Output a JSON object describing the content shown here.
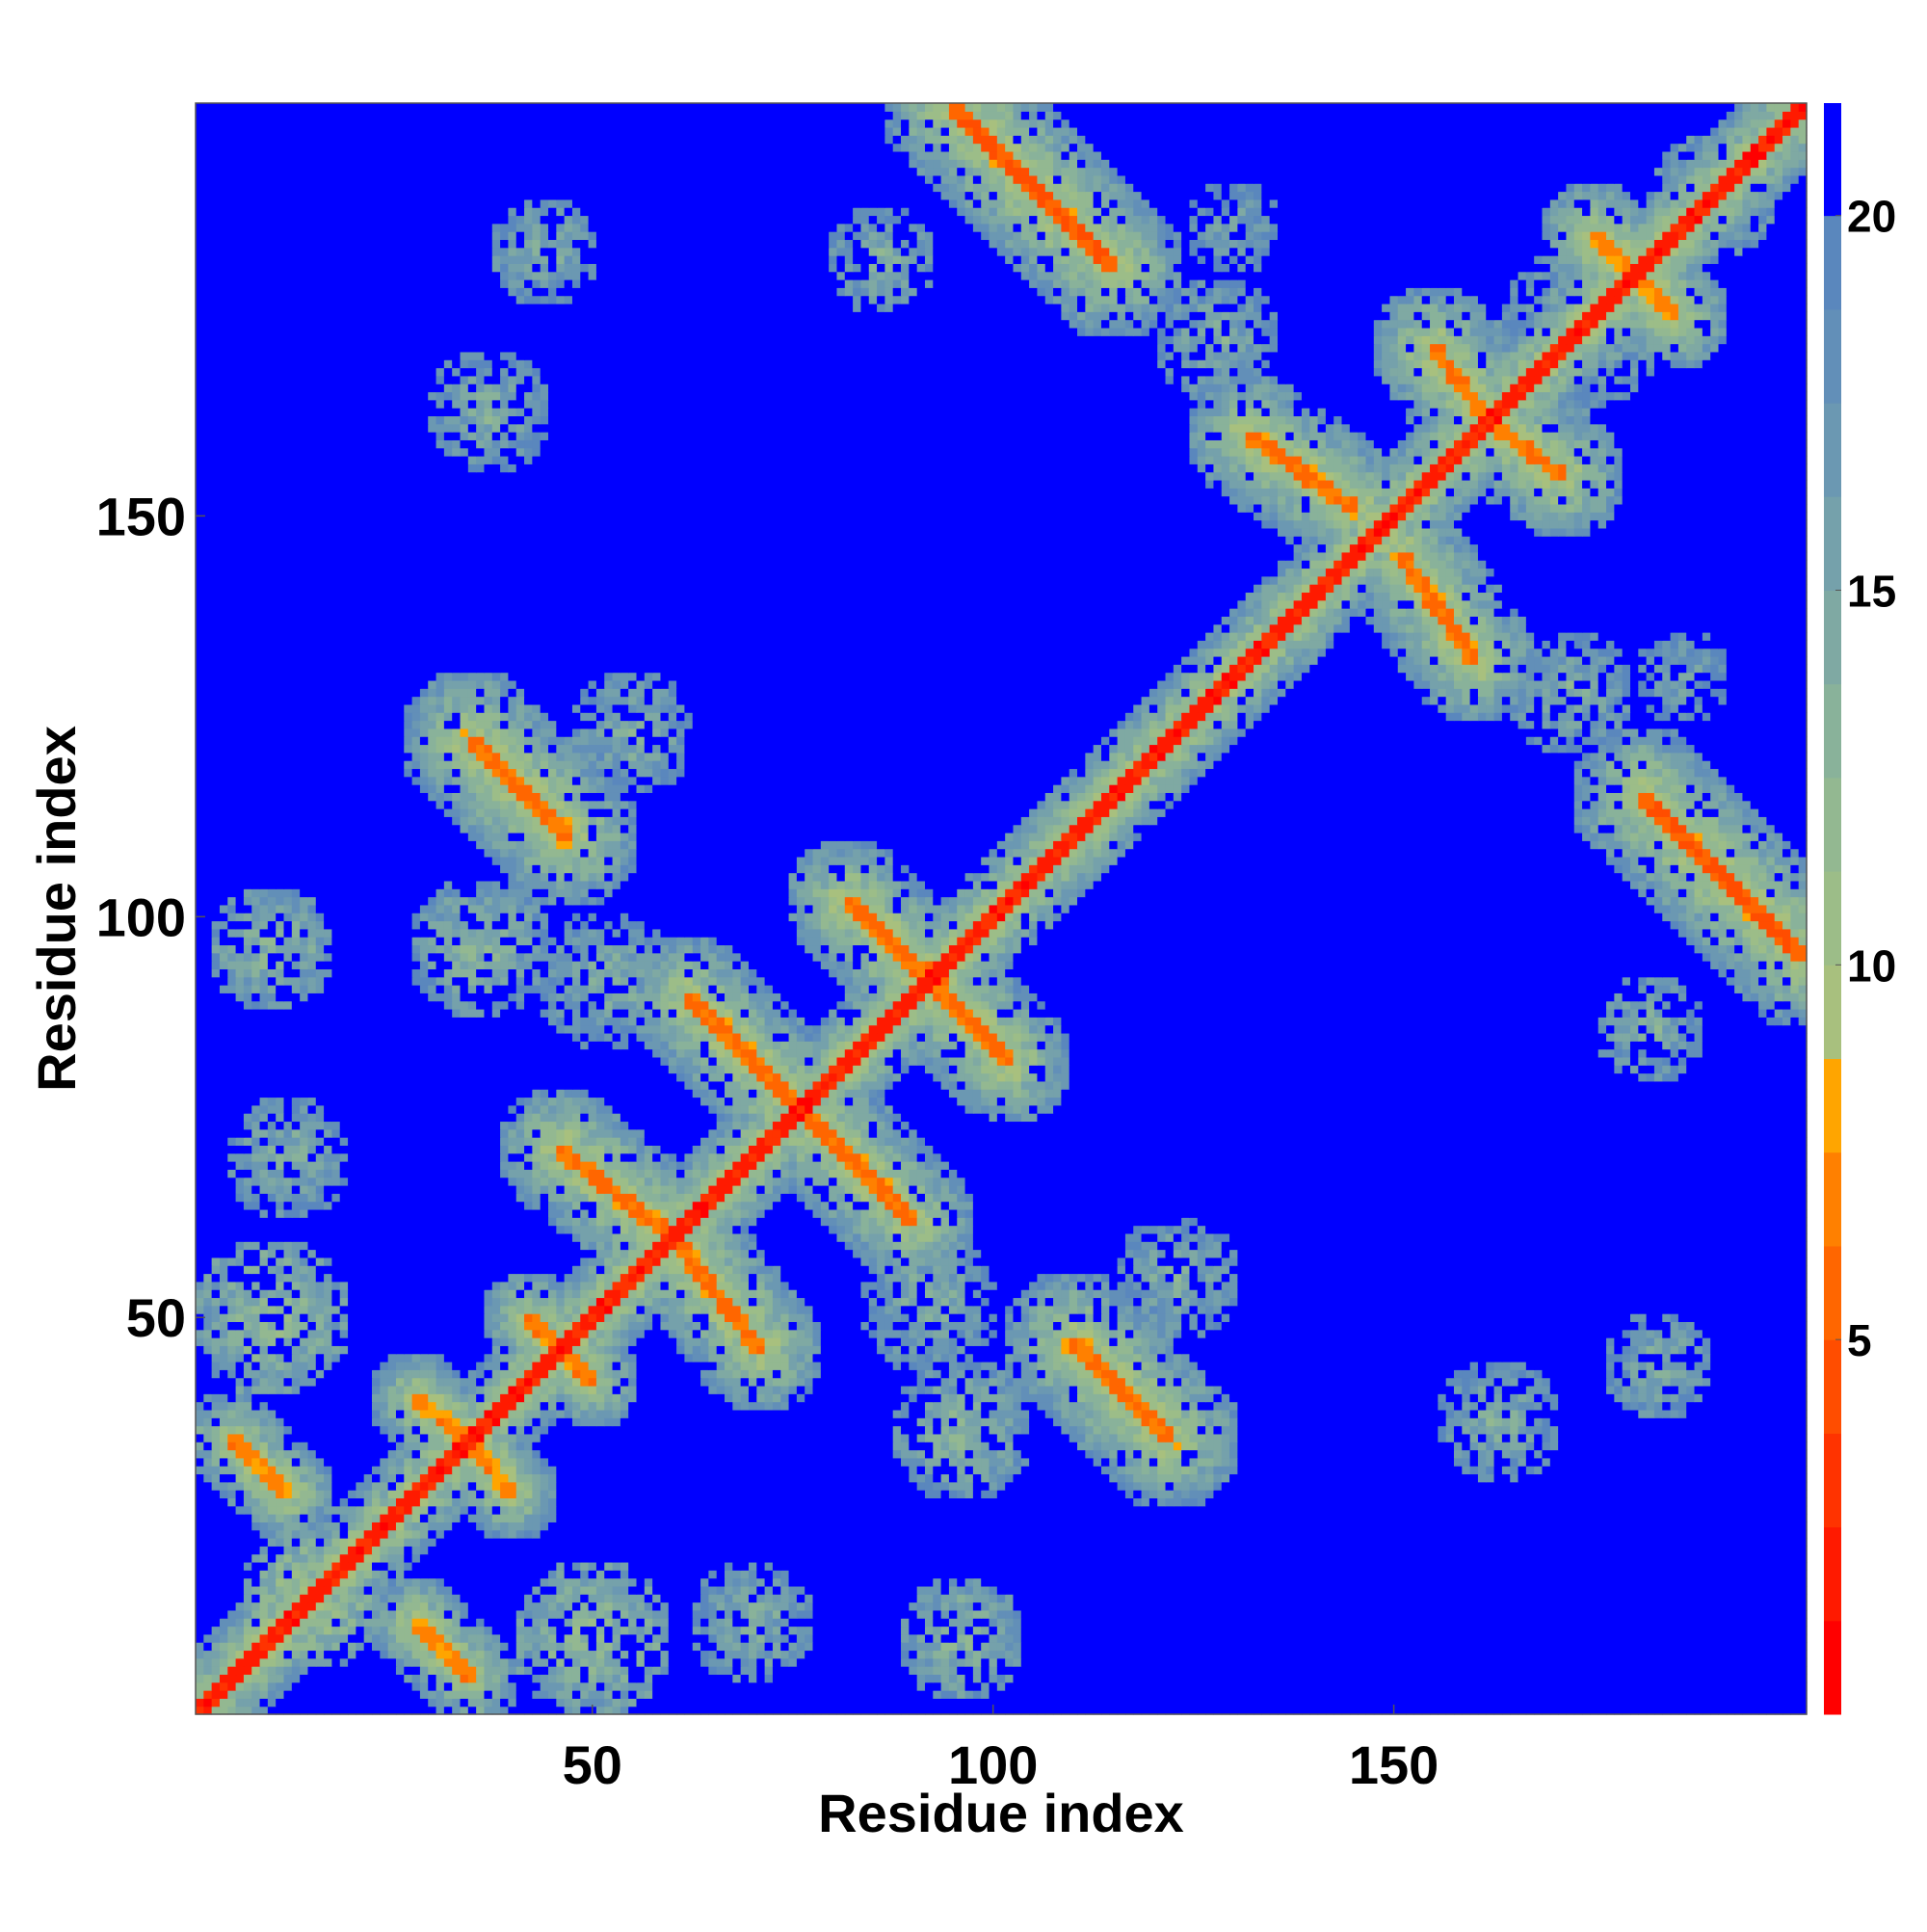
{
  "chart_data": {
    "type": "heatmap",
    "title": "",
    "xlabel": "Residue index",
    "ylabel": "Residue index",
    "x_range": [
      1,
      201
    ],
    "y_range": [
      1,
      201
    ],
    "x_ticks": [
      50,
      100,
      150
    ],
    "y_ticks": [
      50,
      100,
      150
    ],
    "grid": false,
    "colorbar": {
      "placement": "right",
      "range": [
        0,
        21.5
      ],
      "ticks": [
        5,
        10,
        15,
        20
      ],
      "levels": [
        {
          "min": 0,
          "max": 1.25,
          "color": "#ff0000"
        },
        {
          "min": 1.25,
          "max": 2.5,
          "color": "#ff1a00"
        },
        {
          "min": 2.5,
          "max": 3.75,
          "color": "#ff3300"
        },
        {
          "min": 3.75,
          "max": 5.0,
          "color": "#ff4d00"
        },
        {
          "min": 5.0,
          "max": 6.25,
          "color": "#ff6600"
        },
        {
          "min": 6.25,
          "max": 7.5,
          "color": "#ff8000"
        },
        {
          "min": 7.5,
          "max": 8.75,
          "color": "#ffa500"
        },
        {
          "min": 8.75,
          "max": 10.0,
          "color": "#a8c07e"
        },
        {
          "min": 10.0,
          "max": 11.25,
          "color": "#9cbd88"
        },
        {
          "min": 11.25,
          "max": 12.5,
          "color": "#93b891"
        },
        {
          "min": 12.5,
          "max": 13.75,
          "color": "#89b29a"
        },
        {
          "min": 13.75,
          "max": 15.0,
          "color": "#7fa9a3"
        },
        {
          "min": 15.0,
          "max": 16.25,
          "color": "#75a1ab"
        },
        {
          "min": 16.25,
          "max": 17.5,
          "color": "#6b98b2"
        },
        {
          "min": 17.5,
          "max": 18.75,
          "color": "#628fb8"
        },
        {
          "min": 18.75,
          "max": 20.0,
          "color": "#5a87bd"
        },
        {
          "min": 20.0,
          "max": 21.5,
          "color": "#0000ff"
        }
      ]
    },
    "background_value": 21,
    "contact_bands": [
      {
        "x1": 1,
        "y1": 1,
        "x2": 201,
        "y2": 201,
        "value": 1,
        "halo": 6
      },
      {
        "x1": 92,
        "y1": 94,
        "x2": 102,
        "y2": 84,
        "value": 5,
        "halo": 8
      },
      {
        "x1": 62,
        "y1": 90,
        "x2": 75,
        "y2": 77,
        "value": 5,
        "halo": 8
      },
      {
        "x1": 82,
        "y1": 102,
        "x2": 92,
        "y2": 92,
        "value": 5,
        "halo": 8
      },
      {
        "x1": 75,
        "y1": 76,
        "x2": 90,
        "y2": 61,
        "value": 5,
        "halo": 8
      },
      {
        "x1": 46,
        "y1": 71,
        "x2": 60,
        "y2": 60,
        "value": 5,
        "halo": 8
      },
      {
        "x1": 60,
        "y1": 60,
        "x2": 70,
        "y2": 50,
        "value": 5,
        "halo": 8
      },
      {
        "x1": 35,
        "y1": 122,
        "x2": 47,
        "y2": 110,
        "value": 5,
        "halo": 9
      },
      {
        "x1": 110,
        "y1": 46,
        "x2": 122,
        "y2": 34,
        "value": 5,
        "halo": 9
      },
      {
        "x1": 95,
        "y1": 201,
        "x2": 115,
        "y2": 181,
        "value": 4,
        "halo": 9
      },
      {
        "x1": 155,
        "y1": 171,
        "x2": 170,
        "y2": 151,
        "value": 5,
        "halo": 8
      },
      {
        "x1": 132,
        "y1": 160,
        "x2": 145,
        "y2": 151,
        "value": 5,
        "halo": 8
      },
      {
        "x1": 150,
        "y1": 142,
        "x2": 158,
        "y2": 134,
        "value": 5,
        "halo": 8
      },
      {
        "x1": 180,
        "y1": 116,
        "x2": 201,
        "y2": 95,
        "value": 5,
        "halo": 9
      },
      {
        "x1": 175,
        "y1": 185,
        "x2": 185,
        "y2": 175,
        "value": 6,
        "halo": 7
      },
      {
        "x1": 5,
        "y1": 35,
        "x2": 12,
        "y2": 28,
        "value": 6,
        "halo": 6
      },
      {
        "x1": 28,
        "y1": 10,
        "x2": 35,
        "y2": 4,
        "value": 6,
        "halo": 6
      },
      {
        "x1": 28,
        "y1": 40,
        "x2": 38,
        "y2": 32,
        "value": 6,
        "halo": 6
      },
      {
        "x1": 42,
        "y1": 50,
        "x2": 50,
        "y2": 42,
        "value": 6,
        "halo": 6
      }
    ],
    "contact_patches": [
      {
        "cx": 44,
        "cy": 183,
        "r": 7,
        "value": 13
      },
      {
        "cx": 37,
        "cy": 163,
        "r": 8,
        "value": 13
      },
      {
        "cx": 10,
        "cy": 96,
        "r": 8,
        "value": 12
      },
      {
        "cx": 36,
        "cy": 96,
        "r": 9,
        "value": 12
      },
      {
        "cx": 12,
        "cy": 70,
        "r": 8,
        "value": 13
      },
      {
        "cx": 10,
        "cy": 50,
        "r": 10,
        "value": 11
      },
      {
        "cx": 15,
        "cy": 15,
        "r": 9,
        "value": 10
      },
      {
        "cx": 63,
        "cy": 13,
        "r": 6,
        "value": 13
      },
      {
        "cx": 85,
        "cy": 12,
        "r": 9,
        "value": 13
      },
      {
        "cx": 125,
        "cy": 10,
        "r": 7,
        "value": 14
      },
      {
        "cx": 90,
        "cy": 34,
        "r": 8,
        "value": 13
      },
      {
        "cx": 66,
        "cy": 34,
        "r": 6,
        "value": 14
      },
      {
        "cx": 55,
        "cy": 123,
        "r": 8,
        "value": 13
      },
      {
        "cx": 128,
        "cy": 172,
        "r": 8,
        "value": 13
      },
      {
        "cx": 86,
        "cy": 182,
        "r": 7,
        "value": 13
      },
      {
        "cx": 130,
        "cy": 186,
        "r": 6,
        "value": 14
      },
      {
        "cx": 190,
        "cy": 85,
        "r": 12,
        "value": 12
      },
      {
        "cx": 185,
        "cy": 45,
        "r": 10,
        "value": 13
      },
      {
        "cx": 160,
        "cy": 40,
        "r": 9,
        "value": 14
      },
      {
        "cx": 174,
        "cy": 172,
        "r": 12,
        "value": 13
      },
      {
        "cx": 190,
        "cy": 190,
        "r": 8,
        "value": 12
      },
      {
        "cx": 196,
        "cy": 130,
        "r": 7,
        "value": 13
      },
      {
        "cx": 104,
        "cy": 66,
        "r": 8,
        "value": 13
      },
      {
        "cx": 52,
        "cy": 92,
        "r": 9,
        "value": 13
      },
      {
        "cx": 92,
        "cy": 52,
        "r": 9,
        "value": 13
      }
    ]
  }
}
